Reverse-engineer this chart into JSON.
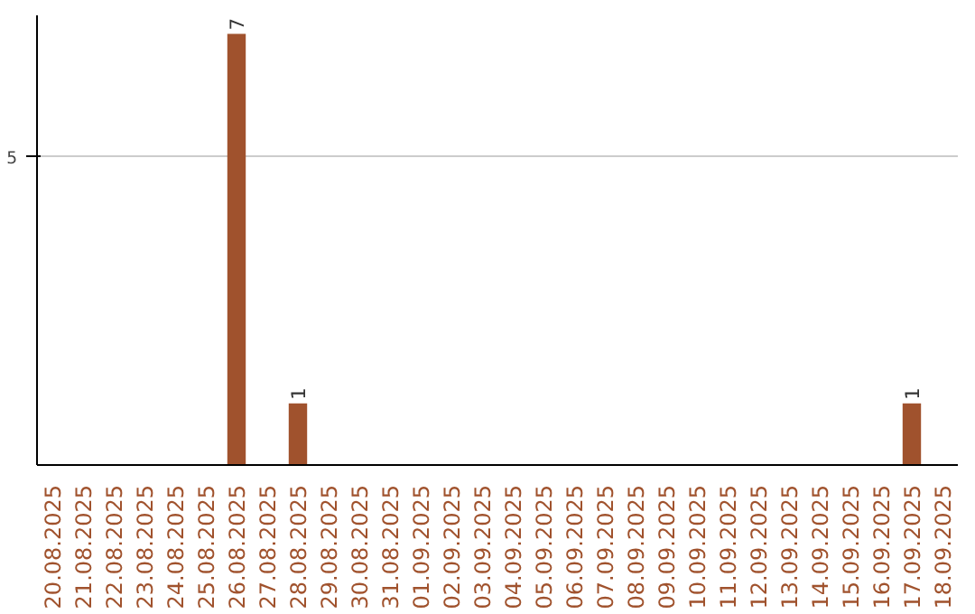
{
  "chart_data": {
    "type": "bar",
    "categories": [
      "20.08.2025",
      "21.08.2025",
      "22.08.2025",
      "23.08.2025",
      "24.08.2025",
      "25.08.2025",
      "26.08.2025",
      "27.08.2025",
      "28.08.2025",
      "29.08.2025",
      "30.08.2025",
      "31.08.2025",
      "01.09.2025",
      "02.09.2025",
      "03.09.2025",
      "04.09.2025",
      "05.09.2025",
      "06.09.2025",
      "07.09.2025",
      "08.09.2025",
      "09.09.2025",
      "10.09.2025",
      "11.09.2025",
      "12.09.2025",
      "13.09.2025",
      "14.09.2025",
      "15.09.2025",
      "16.09.2025",
      "17.09.2025",
      "18.09.2025"
    ],
    "values": [
      0,
      0,
      0,
      0,
      0,
      0,
      7,
      0,
      1,
      0,
      0,
      0,
      0,
      0,
      0,
      0,
      0,
      0,
      0,
      0,
      0,
      0,
      0,
      0,
      0,
      0,
      0,
      0,
      1,
      0
    ],
    "value_labels": [
      null,
      null,
      null,
      null,
      null,
      null,
      "7",
      null,
      "1",
      null,
      null,
      null,
      null,
      null,
      null,
      null,
      null,
      null,
      null,
      null,
      null,
      null,
      null,
      null,
      null,
      null,
      null,
      null,
      "1",
      null
    ],
    "color": "#a0522d",
    "ylim": [
      0,
      7.3
    ],
    "yticks": [
      5
    ],
    "grid": "y"
  }
}
